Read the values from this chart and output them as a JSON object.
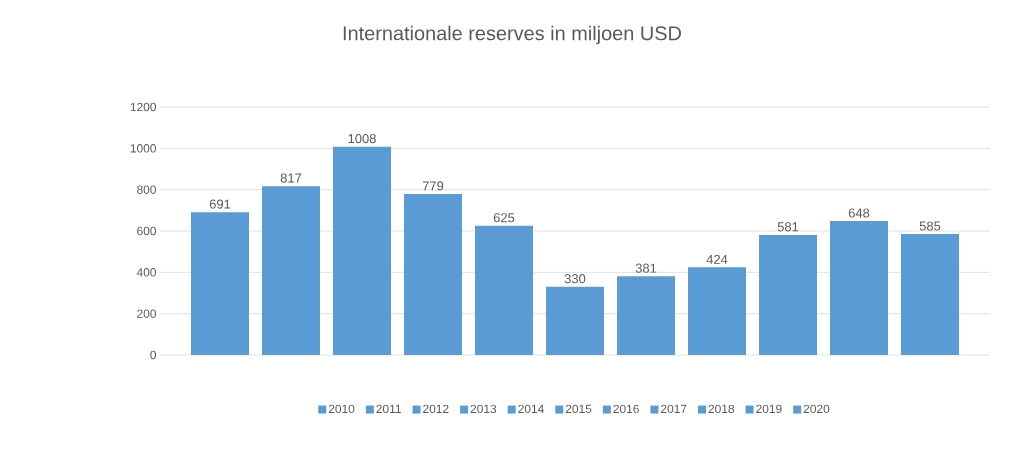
{
  "chart_data": {
    "type": "bar",
    "title": "Internationale reserves in miljoen USD",
    "categories": [
      null
    ],
    "series": [
      {
        "name": "2010",
        "color": "#5b9bd5",
        "values": [
          691
        ]
      },
      {
        "name": "2011",
        "color": "#5b9bd5",
        "values": [
          817
        ]
      },
      {
        "name": "2012",
        "color": "#5b9bd5",
        "values": [
          1008
        ]
      },
      {
        "name": "2013",
        "color": "#5b9bd5",
        "values": [
          779
        ]
      },
      {
        "name": "2014",
        "color": "#5b9bd5",
        "values": [
          625
        ]
      },
      {
        "name": "2015",
        "color": "#5b9bd5",
        "values": [
          330
        ]
      },
      {
        "name": "2016",
        "color": "#5b9bd5",
        "values": [
          381
        ]
      },
      {
        "name": "2017",
        "color": "#5b9bd5",
        "values": [
          424
        ]
      },
      {
        "name": "2018",
        "color": "#5b9bd5",
        "values": [
          581
        ]
      },
      {
        "name": "2019",
        "color": "#5b9bd5",
        "values": [
          648
        ]
      },
      {
        "name": "2020",
        "color": "#5b9bd5",
        "values": [
          585
        ]
      }
    ],
    "data_labels": true,
    "ylim": [
      0,
      1200
    ],
    "yticks": [
      0,
      200,
      400,
      600,
      800,
      1000,
      1200
    ],
    "grid": "y",
    "legend": "bottom"
  }
}
